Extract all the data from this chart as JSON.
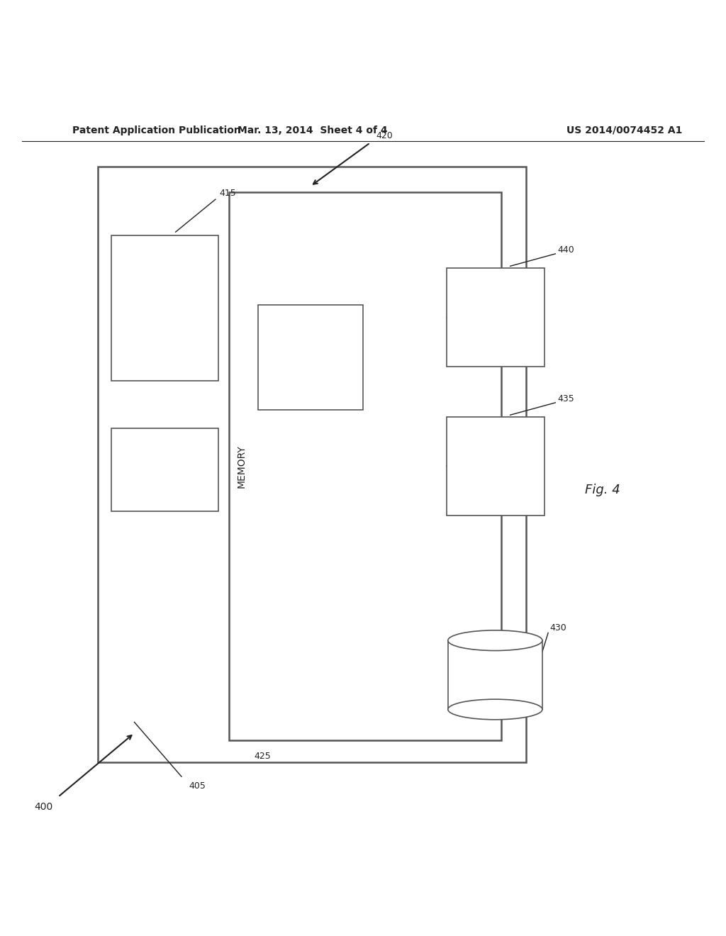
{
  "background_color": "#ffffff",
  "header_left": "Patent Application Publication",
  "header_mid": "Mar. 13, 2014  Sheet 4 of 4",
  "header_right": "US 2014/0074452 A1",
  "fig_label": "Fig. 4",
  "label_400": "400",
  "label_405": "405",
  "label_415": "415",
  "label_420": "420",
  "label_425": "425",
  "label_430": "430",
  "label_435": "435",
  "label_440": "440"
}
